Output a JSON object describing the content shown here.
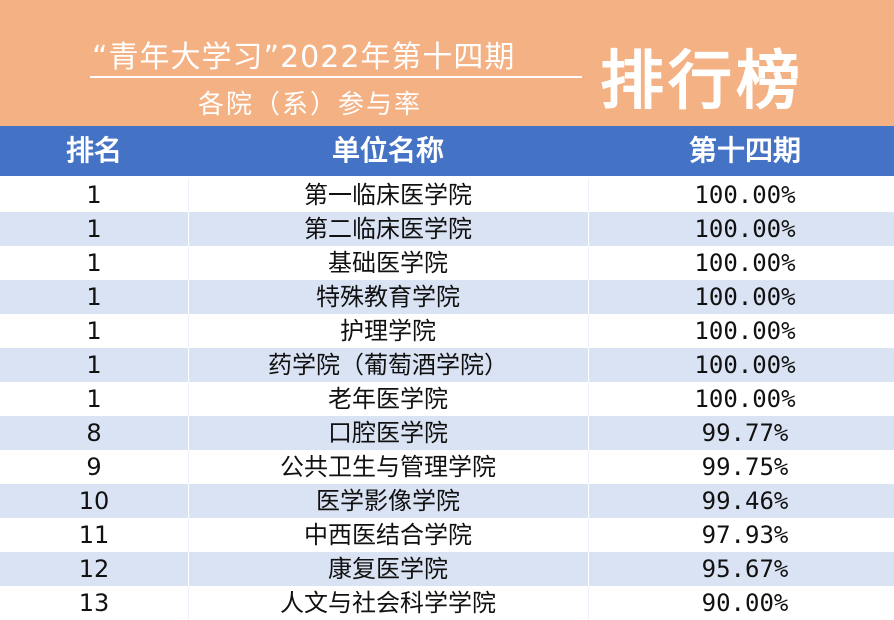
{
  "banner": {
    "title_line1": "“青年大学习”2022年第十四期",
    "title_line2": "各院（系）参与率",
    "big_title": "排行榜"
  },
  "table": {
    "headers": [
      "排名",
      "单位名称",
      "第十四期"
    ],
    "rows": [
      {
        "rank": "1",
        "name": "第一临床医学院",
        "pct": "100.00%"
      },
      {
        "rank": "1",
        "name": "第二临床医学院",
        "pct": "100.00%"
      },
      {
        "rank": "1",
        "name": "基础医学院",
        "pct": "100.00%"
      },
      {
        "rank": "1",
        "name": "特殊教育学院",
        "pct": "100.00%"
      },
      {
        "rank": "1",
        "name": "护理学院",
        "pct": "100.00%"
      },
      {
        "rank": "1",
        "name": "药学院（葡萄酒学院）",
        "pct": "100.00%"
      },
      {
        "rank": "1",
        "name": "老年医学院",
        "pct": "100.00%"
      },
      {
        "rank": "8",
        "name": "口腔医学院",
        "pct": "99.77%"
      },
      {
        "rank": "9",
        "name": "公共卫生与管理学院",
        "pct": "99.75%"
      },
      {
        "rank": "10",
        "name": "医学影像学院",
        "pct": "99.46%"
      },
      {
        "rank": "11",
        "name": "中西医结合学院",
        "pct": "97.93%"
      },
      {
        "rank": "12",
        "name": "康复医学院",
        "pct": "95.67%"
      },
      {
        "rank": "13",
        "name": "人文与社会科学学院",
        "pct": "90.00%"
      }
    ]
  }
}
